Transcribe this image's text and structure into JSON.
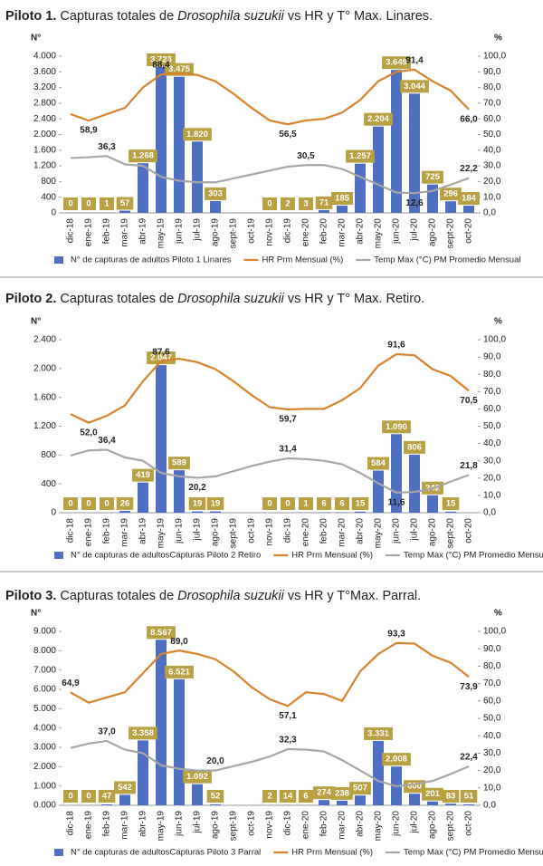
{
  "chart_data": [
    {
      "type": "combo",
      "title": [
        "Piloto 1.",
        "Capturas totales de",
        "Drosophila suzukii",
        "vs HR y T° Max. Linares."
      ],
      "y_label": "N°",
      "y2_label": "%",
      "categories": [
        "dic-18",
        "ene-19",
        "feb-19",
        "mar-19",
        "abr-19",
        "may-19",
        "jun-19",
        "jul-19",
        "ago-19",
        "sept-19",
        "oct-19",
        "nov-19",
        "dic-19",
        "ene-20",
        "feb-20",
        "mar-20",
        "abr-20",
        "may-20",
        "jun-20",
        "jul-20",
        "ago-20",
        "sept-20",
        "oct-20"
      ],
      "ylim": [
        0,
        4000
      ],
      "yticks": [
        0,
        400,
        800,
        {
          "value": 1200,
          "label": "1.200"
        },
        {
          "value": 1600,
          "label": "1.600"
        },
        {
          "value": 2000,
          "label": "2.000"
        },
        {
          "value": 2400,
          "label": "2.400"
        },
        {
          "value": 2800,
          "label": "2.800"
        },
        {
          "value": 3200,
          "label": "3.200"
        },
        {
          "value": 3600,
          "label": "3.600"
        },
        {
          "value": 4000,
          "label": "4.000"
        }
      ],
      "y2lim": [
        0,
        100
      ],
      "y2ticks": [
        {
          "value": 0,
          "label": "0,0"
        },
        {
          "value": 10,
          "label": "10,0"
        },
        {
          "value": 20,
          "label": "20,0"
        },
        {
          "value": 30,
          "label": "30,0"
        },
        {
          "value": 40,
          "label": "40,0"
        },
        {
          "value": 50,
          "label": "50,0"
        },
        {
          "value": 60,
          "label": "60,0"
        },
        {
          "value": 70,
          "label": "70,0"
        },
        {
          "value": 80,
          "label": "80,0"
        },
        {
          "value": 90,
          "label": "90,0"
        },
        {
          "value": 100,
          "label": "100,0"
        }
      ],
      "series": [
        {
          "name": "N° de capturas de adultos Piloto 1 Linares",
          "type": "bar",
          "color": "#4f6fc2",
          "label_color": "#b8a043",
          "values": [
            0,
            0,
            1,
            57,
            1268,
            3723,
            3475,
            1820,
            303,
            null,
            null,
            0,
            2,
            3,
            71,
            185,
            1257,
            2204,
            3649,
            3044,
            725,
            296,
            184
          ],
          "value_labels": [
            null,
            null,
            null,
            null,
            "1.268",
            "3.723",
            "3.475",
            "1.820",
            null,
            null,
            null,
            null,
            null,
            null,
            null,
            null,
            "1.257",
            "2.204",
            "3.649",
            "3.044",
            null,
            null,
            null
          ]
        },
        {
          "name": "HR Prm Mensual (%)",
          "type": "line",
          "axis": "y2",
          "color": "#d9822b",
          "values": [
            63,
            58.9,
            63,
            67,
            80,
            88.4,
            89,
            88,
            84,
            76,
            67,
            59,
            56.5,
            59,
            60,
            64,
            72,
            84,
            90,
            91.4,
            84,
            78,
            66
          ],
          "value_labels": [
            null,
            "58,9",
            null,
            null,
            null,
            "88,4",
            null,
            null,
            null,
            null,
            null,
            null,
            "56,5",
            null,
            null,
            null,
            null,
            null,
            null,
            "91,4",
            null,
            null,
            "66,0"
          ]
        },
        {
          "name": "Temp Max (°C) PM Promedio Mensual",
          "type": "line",
          "axis": "y2",
          "color": "#a6a6a6",
          "values": [
            35,
            35.5,
            36.3,
            31,
            30,
            23,
            20.5,
            19.5,
            19.5,
            22,
            24.5,
            27,
            29.5,
            30.5,
            30.5,
            28,
            23,
            18,
            13,
            12.6,
            14,
            18,
            22.2
          ],
          "value_labels": [
            null,
            null,
            "36,3",
            null,
            null,
            null,
            null,
            null,
            null,
            null,
            null,
            null,
            null,
            "30,5",
            null,
            null,
            null,
            null,
            null,
            "12,6",
            null,
            null,
            "22,2"
          ]
        }
      ]
    },
    {
      "type": "combo",
      "title": [
        "Piloto 2.",
        "Capturas totales de",
        "Drosophila suzukii",
        "vs HR y T° Max. Retiro."
      ],
      "y_label": "N°",
      "y2_label": "%",
      "categories": [
        "dic-18",
        "ene-19",
        "feb-19",
        "mar-19",
        "abr-19",
        "may-19",
        "jun-19",
        "jul-19",
        "ago-19",
        "sept-19",
        "oct-19",
        "nov-19",
        "dic-19",
        "ene-20",
        "feb-20",
        "mar-20",
        "abr-20",
        "may-20",
        "jun-20",
        "jul-20",
        "ago-20",
        "sept-20",
        "oct-20"
      ],
      "ylim": [
        0,
        2400
      ],
      "yticks": [
        0,
        400,
        800,
        {
          "value": 1200,
          "label": "1.200"
        },
        {
          "value": 1600,
          "label": "1.600"
        },
        {
          "value": 2000,
          "label": "2.000"
        },
        {
          "value": 2400,
          "label": "2.400"
        }
      ],
      "y2lim": [
        0,
        100
      ],
      "y2ticks": [
        {
          "value": 0,
          "label": "0,0"
        },
        {
          "value": 10,
          "label": "10,0"
        },
        {
          "value": 20,
          "label": "20,0"
        },
        {
          "value": 30,
          "label": "30,0"
        },
        {
          "value": 40,
          "label": "40,0"
        },
        {
          "value": 50,
          "label": "50,0"
        },
        {
          "value": 60,
          "label": "60,0"
        },
        {
          "value": 70,
          "label": "70,0"
        },
        {
          "value": 80,
          "label": "80,0"
        },
        {
          "value": 90,
          "label": "90,0"
        },
        {
          "value": 100,
          "label": "100,0"
        }
      ],
      "series": [
        {
          "name": "N° de capturas de adultosCapturas Piloto 2 Retiro",
          "type": "bar",
          "color": "#4f6fc2",
          "label_color": "#b8a043",
          "values": [
            0,
            0,
            0,
            26,
            419,
            2047,
            589,
            19,
            19,
            null,
            null,
            0,
            0,
            1,
            6,
            6,
            15,
            584,
            1090,
            806,
            242,
            15,
            null
          ],
          "value_labels": [
            null,
            null,
            null,
            null,
            null,
            "2.047",
            null,
            null,
            null,
            null,
            null,
            null,
            null,
            null,
            null,
            null,
            null,
            null,
            "1.090",
            null,
            null,
            null,
            null
          ]
        },
        {
          "name": "HR Prm Mensual (%)",
          "type": "line",
          "axis": "y2",
          "color": "#d9822b",
          "values": [
            57,
            52,
            56,
            62,
            76,
            87.6,
            89,
            87,
            83,
            76,
            68,
            61,
            59.7,
            60,
            60,
            65,
            72,
            85,
            91.6,
            91,
            83,
            79,
            70.5
          ],
          "value_labels": [
            null,
            "52,0",
            null,
            null,
            null,
            "87,6",
            null,
            null,
            null,
            null,
            null,
            null,
            "59,7",
            null,
            null,
            null,
            null,
            null,
            "91,6",
            null,
            null,
            null,
            "70,5"
          ]
        },
        {
          "name": "Temp Max (°C) PM Promedio Mensual",
          "type": "line",
          "axis": "y2",
          "color": "#a6a6a6",
          "values": [
            33,
            36,
            36.4,
            32,
            30,
            23,
            21,
            20.2,
            21,
            24,
            27,
            29.5,
            31.4,
            31,
            30,
            28,
            23,
            17,
            11.6,
            12,
            14,
            18,
            21.8
          ],
          "value_labels": [
            null,
            null,
            "36,4",
            null,
            null,
            null,
            null,
            "20,2",
            null,
            null,
            null,
            null,
            "31,4",
            null,
            null,
            null,
            null,
            null,
            "11,6",
            null,
            null,
            null,
            "21,8"
          ]
        }
      ]
    },
    {
      "type": "combo",
      "title": [
        "Piloto 3.",
        "Capturas totales de",
        "Drosophila suzukii",
        "vs HR y T°Max. Parral."
      ],
      "y_label": "N°",
      "y2_label": "%",
      "categories": [
        "dic-18",
        "ene-19",
        "feb-19",
        "mar-19",
        "abr-19",
        "may-19",
        "jun-19",
        "jul-19",
        "ago-19",
        "sept-19",
        "oct-19",
        "nov-19",
        "dic-19",
        "ene-20",
        "feb-20",
        "mar-20",
        "abr-20",
        "may-20",
        "jun-20",
        "jul-20",
        "ago-20",
        "sept-20",
        "oct-20"
      ],
      "ylim": [
        0,
        9000
      ],
      "yticks": [
        {
          "value": 0,
          "label": "0.000"
        },
        {
          "value": 1000,
          "label": "1.000"
        },
        {
          "value": 2000,
          "label": "2.000"
        },
        {
          "value": 3000,
          "label": "3.000"
        },
        {
          "value": 4000,
          "label": "4.000"
        },
        {
          "value": 5000,
          "label": "5.000"
        },
        {
          "value": 6000,
          "label": "6.000"
        },
        {
          "value": 7000,
          "label": "7.000"
        },
        {
          "value": 8000,
          "label": "8.000"
        },
        {
          "value": 9000,
          "label": "9.000"
        }
      ],
      "y2lim": [
        0,
        100
      ],
      "y2ticks": [
        {
          "value": 0,
          "label": "0,0"
        },
        {
          "value": 10,
          "label": "10,0"
        },
        {
          "value": 20,
          "label": "20,0"
        },
        {
          "value": 30,
          "label": "30,0"
        },
        {
          "value": 40,
          "label": "40,0"
        },
        {
          "value": 50,
          "label": "50,0"
        },
        {
          "value": 60,
          "label": "60,0"
        },
        {
          "value": 70,
          "label": "70,0"
        },
        {
          "value": 80,
          "label": "80,0"
        },
        {
          "value": 90,
          "label": "90,0"
        },
        {
          "value": 100,
          "label": "100,0"
        }
      ],
      "series": [
        {
          "name": "N° de capturas de adultosCapturas Piloto 3 Parral",
          "type": "bar",
          "color": "#4f6fc2",
          "label_color": "#b8a043",
          "values": [
            0,
            0,
            47,
            542,
            3358,
            8567,
            6521,
            1092,
            52,
            null,
            null,
            2,
            14,
            6,
            274,
            238,
            507,
            3331,
            2008,
            600,
            201,
            83,
            51
          ],
          "value_labels": [
            null,
            null,
            null,
            null,
            "3.358",
            "8.567",
            "6.521",
            "1.092",
            null,
            null,
            null,
            null,
            null,
            null,
            null,
            null,
            null,
            "3.331",
            "2.008",
            null,
            null,
            null,
            null
          ]
        },
        {
          "name": "HR Prm Mensual (%)",
          "type": "line",
          "axis": "y2",
          "color": "#d9822b",
          "values": [
            64.9,
            59,
            62,
            65,
            76,
            87,
            89,
            87,
            84,
            77,
            68,
            61,
            57.1,
            65,
            64,
            60,
            77,
            87,
            93.3,
            93,
            86,
            82,
            73.9
          ],
          "value_labels": [
            "64,9",
            null,
            null,
            null,
            null,
            null,
            "89,0",
            null,
            null,
            null,
            null,
            null,
            "57,1",
            null,
            null,
            null,
            null,
            null,
            "93,3",
            null,
            null,
            null,
            "73,9"
          ]
        },
        {
          "name": "Temp Max (°C) PM Promedio Mensual",
          "type": "line",
          "axis": "y2",
          "color": "#a6a6a6",
          "values": [
            33,
            35.5,
            37,
            32,
            30,
            23,
            21,
            20,
            20,
            22.5,
            25,
            28,
            32.3,
            32,
            31,
            26,
            20,
            14,
            11,
            12,
            14,
            18,
            22.4
          ],
          "value_labels": [
            null,
            null,
            "37,0",
            null,
            null,
            null,
            null,
            null,
            "20,0",
            null,
            null,
            null,
            "32,3",
            null,
            null,
            null,
            null,
            null,
            null,
            null,
            null,
            null,
            "22,4"
          ]
        }
      ]
    }
  ]
}
